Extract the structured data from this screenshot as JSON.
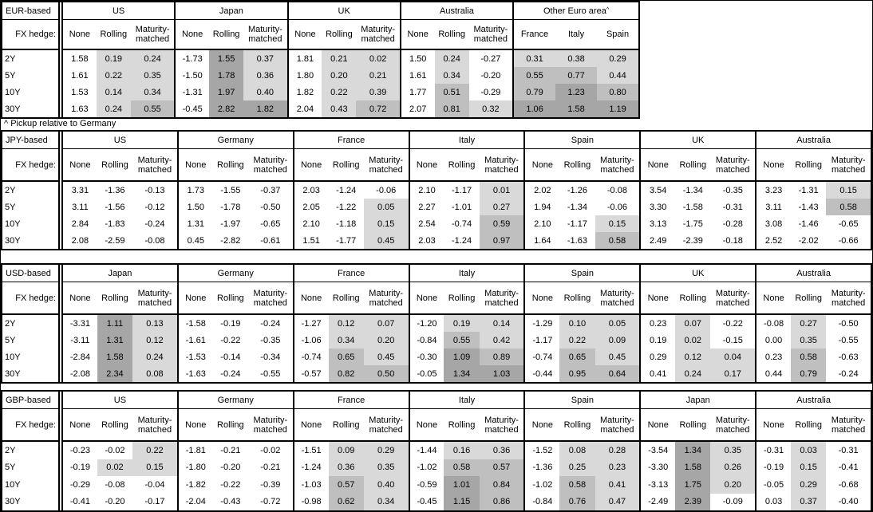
{
  "footnote": "^ Pickup relative to Germany",
  "labels": {
    "fx_hedge": "FX hedge:",
    "hedge_cols": [
      "None",
      "Rolling",
      "Maturity-matched"
    ],
    "tenors": [
      "2Y",
      "5Y",
      "10Y",
      "30Y"
    ]
  },
  "colors": {
    "background": "#ffffff",
    "border": "#000000",
    "shade_low": "#d9d9d9",
    "shade_mid": "#bfbfbf",
    "shade_high": "#a6a6a6"
  },
  "shading_rule": "Rolling, Maturity-matched and country-pickup cells: value < 0 unshaded; 0 to 0.5 low; 0.5 to 1.0 mid; 1.0+ high. None columns unshaded.",
  "tables": [
    {
      "base": "EUR-based",
      "groups": [
        {
          "name": "US",
          "rows": [
            [
              "1.58",
              "0.19",
              "0.24"
            ],
            [
              "1.61",
              "0.22",
              "0.35"
            ],
            [
              "1.53",
              "0.14",
              "0.34"
            ],
            [
              "1.63",
              "0.24",
              "0.55"
            ]
          ]
        },
        {
          "name": "Japan",
          "rows": [
            [
              "-1.73",
              "1.55",
              "0.37"
            ],
            [
              "-1.50",
              "1.78",
              "0.36"
            ],
            [
              "-1.31",
              "1.97",
              "0.40"
            ],
            [
              "-0.45",
              "2.82",
              "1.82"
            ]
          ]
        },
        {
          "name": "UK",
          "rows": [
            [
              "1.81",
              "0.21",
              "0.02"
            ],
            [
              "1.80",
              "0.20",
              "0.21"
            ],
            [
              "1.82",
              "0.22",
              "0.39"
            ],
            [
              "2.04",
              "0.43",
              "0.72"
            ]
          ]
        },
        {
          "name": "Australia",
          "rows": [
            [
              "1.50",
              "0.24",
              "-0.27"
            ],
            [
              "1.61",
              "0.34",
              "-0.20"
            ],
            [
              "1.77",
              "0.51",
              "-0.29"
            ],
            [
              "2.07",
              "0.81",
              "0.32"
            ]
          ]
        },
        {
          "name": "Other Euro area",
          "sup": "^",
          "columns": [
            "France",
            "Italy",
            "Spain"
          ],
          "rows": [
            [
              "0.31",
              "0.38",
              "0.29"
            ],
            [
              "0.55",
              "0.77",
              "0.44"
            ],
            [
              "0.79",
              "1.23",
              "0.80"
            ],
            [
              "1.06",
              "1.58",
              "1.19"
            ]
          ]
        }
      ]
    },
    {
      "base": "JPY-based",
      "groups": [
        {
          "name": "US",
          "rows": [
            [
              "3.31",
              "-1.36",
              "-0.13"
            ],
            [
              "3.11",
              "-1.56",
              "-0.12"
            ],
            [
              "2.84",
              "-1.83",
              "-0.24"
            ],
            [
              "2.08",
              "-2.59",
              "-0.08"
            ]
          ]
        },
        {
          "name": "Germany",
          "rows": [
            [
              "1.73",
              "-1.55",
              "-0.37"
            ],
            [
              "1.50",
              "-1.78",
              "-0.50"
            ],
            [
              "1.31",
              "-1.97",
              "-0.65"
            ],
            [
              "0.45",
              "-2.82",
              "-0.61"
            ]
          ]
        },
        {
          "name": "France",
          "rows": [
            [
              "2.03",
              "-1.24",
              "-0.06"
            ],
            [
              "2.05",
              "-1.22",
              "0.05"
            ],
            [
              "2.10",
              "-1.18",
              "0.15"
            ],
            [
              "1.51",
              "-1.77",
              "0.45"
            ]
          ]
        },
        {
          "name": "Italy",
          "rows": [
            [
              "2.10",
              "-1.17",
              "0.01"
            ],
            [
              "2.27",
              "-1.01",
              "0.27"
            ],
            [
              "2.54",
              "-0.74",
              "0.59"
            ],
            [
              "2.03",
              "-1.24",
              "0.97"
            ]
          ]
        },
        {
          "name": "Spain",
          "rows": [
            [
              "2.02",
              "-1.26",
              "-0.08"
            ],
            [
              "1.94",
              "-1.34",
              "-0.06"
            ],
            [
              "2.10",
              "-1.17",
              "0.15"
            ],
            [
              "1.64",
              "-1.63",
              "0.58"
            ]
          ]
        },
        {
          "name": "UK",
          "rows": [
            [
              "3.54",
              "-1.34",
              "-0.35"
            ],
            [
              "3.30",
              "-1.58",
              "-0.31"
            ],
            [
              "3.13",
              "-1.75",
              "-0.28"
            ],
            [
              "2.49",
              "-2.39",
              "-0.18"
            ]
          ]
        },
        {
          "name": "Australia",
          "rows": [
            [
              "3.23",
              "-1.31",
              "0.15"
            ],
            [
              "3.11",
              "-1.43",
              "0.58"
            ],
            [
              "3.08",
              "-1.46",
              "-0.65"
            ],
            [
              "2.52",
              "-2.02",
              "-0.66"
            ]
          ]
        }
      ]
    },
    {
      "base": "USD-based",
      "groups": [
        {
          "name": "Japan",
          "rows": [
            [
              "-3.31",
              "1.11",
              "0.13"
            ],
            [
              "-3.11",
              "1.31",
              "0.12"
            ],
            [
              "-2.84",
              "1.58",
              "0.24"
            ],
            [
              "-2.08",
              "2.34",
              "0.08"
            ]
          ]
        },
        {
          "name": "Germany",
          "rows": [
            [
              "-1.58",
              "-0.19",
              "-0.24"
            ],
            [
              "-1.61",
              "-0.22",
              "-0.35"
            ],
            [
              "-1.53",
              "-0.14",
              "-0.34"
            ],
            [
              "-1.63",
              "-0.24",
              "-0.55"
            ]
          ]
        },
        {
          "name": "France",
          "rows": [
            [
              "-1.27",
              "0.12",
              "0.07"
            ],
            [
              "-1.06",
              "0.34",
              "0.20"
            ],
            [
              "-0.74",
              "0.65",
              "0.45"
            ],
            [
              "-0.57",
              "0.82",
              "0.50"
            ]
          ]
        },
        {
          "name": "Italy",
          "rows": [
            [
              "-1.20",
              "0.19",
              "0.14"
            ],
            [
              "-0.84",
              "0.55",
              "0.42"
            ],
            [
              "-0.30",
              "1.09",
              "0.89"
            ],
            [
              "-0.05",
              "1.34",
              "1.03"
            ]
          ]
        },
        {
          "name": "Spain",
          "rows": [
            [
              "-1.29",
              "0.10",
              "0.05"
            ],
            [
              "-1.17",
              "0.22",
              "0.09"
            ],
            [
              "-0.74",
              "0.65",
              "0.45"
            ],
            [
              "-0.44",
              "0.95",
              "0.64"
            ]
          ]
        },
        {
          "name": "UK",
          "rows": [
            [
              "0.23",
              "0.07",
              "-0.22"
            ],
            [
              "0.19",
              "0.02",
              "-0.15"
            ],
            [
              "0.29",
              "0.12",
              "0.04"
            ],
            [
              "0.41",
              "0.24",
              "0.17"
            ]
          ]
        },
        {
          "name": "Australia",
          "rows": [
            [
              "-0.08",
              "0.27",
              "-0.50"
            ],
            [
              "0.00",
              "0.35",
              "-0.55"
            ],
            [
              "0.23",
              "0.58",
              "-0.63"
            ],
            [
              "0.44",
              "0.79",
              "-0.24"
            ]
          ]
        }
      ]
    },
    {
      "base": "GBP-based",
      "groups": [
        {
          "name": "US",
          "rows": [
            [
              "-0.23",
              "-0.02",
              "0.22"
            ],
            [
              "-0.19",
              "0.02",
              "0.15"
            ],
            [
              "-0.29",
              "-0.08",
              "-0.04"
            ],
            [
              "-0.41",
              "-0.20",
              "-0.17"
            ]
          ]
        },
        {
          "name": "Germany",
          "rows": [
            [
              "-1.81",
              "-0.21",
              "-0.02"
            ],
            [
              "-1.80",
              "-0.20",
              "-0.21"
            ],
            [
              "-1.82",
              "-0.22",
              "-0.39"
            ],
            [
              "-2.04",
              "-0.43",
              "-0.72"
            ]
          ]
        },
        {
          "name": "France",
          "rows": [
            [
              "-1.51",
              "0.09",
              "0.29"
            ],
            [
              "-1.24",
              "0.36",
              "0.35"
            ],
            [
              "-1.03",
              "0.57",
              "0.40"
            ],
            [
              "-0.98",
              "0.62",
              "0.34"
            ]
          ]
        },
        {
          "name": "Italy",
          "rows": [
            [
              "-1.44",
              "0.16",
              "0.36"
            ],
            [
              "-1.02",
              "0.58",
              "0.57"
            ],
            [
              "-0.59",
              "1.01",
              "0.84"
            ],
            [
              "-0.45",
              "1.15",
              "0.86"
            ]
          ]
        },
        {
          "name": "Spain",
          "rows": [
            [
              "-1.52",
              "0.08",
              "0.28"
            ],
            [
              "-1.36",
              "0.25",
              "0.23"
            ],
            [
              "-1.02",
              "0.58",
              "0.41"
            ],
            [
              "-0.84",
              "0.76",
              "0.47"
            ]
          ]
        },
        {
          "name": "Japan",
          "rows": [
            [
              "-3.54",
              "1.34",
              "0.35"
            ],
            [
              "-3.30",
              "1.58",
              "0.26"
            ],
            [
              "-3.13",
              "1.75",
              "0.20"
            ],
            [
              "-2.49",
              "2.39",
              "-0.09"
            ]
          ]
        },
        {
          "name": "Australia",
          "rows": [
            [
              "-0.31",
              "0.03",
              "-0.31"
            ],
            [
              "-0.19",
              "0.15",
              "-0.41"
            ],
            [
              "-0.05",
              "0.29",
              "-0.68"
            ],
            [
              "0.03",
              "0.37",
              "-0.40"
            ]
          ]
        }
      ]
    }
  ]
}
